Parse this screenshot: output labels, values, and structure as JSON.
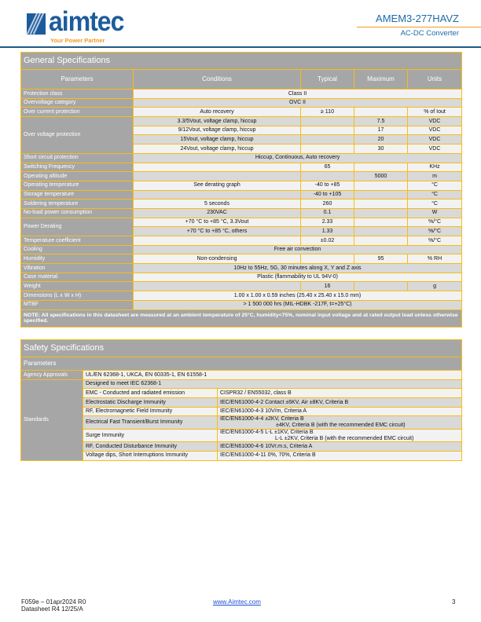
{
  "header": {
    "logo_text": "aimtec",
    "logo_tagline": "Your Power Partner",
    "product": "AMEM3-277HAVZ",
    "subtitle": "AC-DC Converter"
  },
  "general": {
    "title": "General Specifications",
    "columns": [
      "Parameters",
      "Conditions",
      "Typical",
      "Maximum",
      "Units"
    ],
    "rows": [
      {
        "p": "Protection class",
        "span": "Class II"
      },
      {
        "p": "Overvoltage category",
        "span": "OVC II"
      },
      {
        "p": "Over current protection",
        "c": "Auto recovery",
        "t": "≥ 110",
        "m": "",
        "u": "% of Iout"
      },
      {
        "p": "Over voltage protection",
        "c": "3.3/5Vout, voltage clamp, hiccup",
        "t": "",
        "m": "7.5",
        "u": "VDC",
        "rs": 4
      },
      {
        "c": "9/12Vout, voltage clamp, hiccup",
        "t": "",
        "m": "17",
        "u": "VDC"
      },
      {
        "c": "15Vout, voltage clamp, hiccup",
        "t": "",
        "m": "20",
        "u": "VDC"
      },
      {
        "c": "24Vout, voltage clamp, hiccup",
        "t": "",
        "m": "30",
        "u": "VDC"
      },
      {
        "p": "Short circuit protection",
        "span": "Hiccup, Continuous, Auto recovery"
      },
      {
        "p": "Switching Frequency",
        "c": "",
        "t": "65",
        "m": "",
        "u": "KHz"
      },
      {
        "p": "Operating altitude",
        "c": "",
        "t": "",
        "m": "5000",
        "u": "m"
      },
      {
        "p": "Operating temperature",
        "c": "See derating graph",
        "t": "-40 to +85",
        "m": "",
        "u": "°C"
      },
      {
        "p": "Storage temperature",
        "c": "",
        "t": "-40 to +105",
        "m": "",
        "u": "°C"
      },
      {
        "p": "Soldering temperature",
        "c": "5 seconds",
        "t": "260",
        "m": "",
        "u": "°C"
      },
      {
        "p": "No-load power consumption",
        "c": "230VAC",
        "t": "0.1",
        "m": "",
        "u": "W"
      },
      {
        "p": "Power Derating",
        "c": "+70 °C to +85 °C, 3.3Vout",
        "t": "2.33",
        "m": "",
        "u": "%/°C",
        "rs": 2
      },
      {
        "c": "+70 °C to +85 °C, others",
        "t": "1.33",
        "m": "",
        "u": "%/°C"
      },
      {
        "p": "Temperature coefficient",
        "c": "",
        "t": "±0.02",
        "m": "",
        "u": "%/°C"
      },
      {
        "p": "Cooling",
        "span": "Free air convection"
      },
      {
        "p": "Humidity",
        "c": "Non-condensing",
        "t": "",
        "m": "95",
        "u": "% RH"
      },
      {
        "p": "Vibration",
        "span": "10Hz to 55Hz, 5G, 30 minutes along X, Y and Z axis"
      },
      {
        "p": "Case material",
        "span": "Plastic (flammability to UL 94V-0)"
      },
      {
        "p": "Weight",
        "c": "",
        "t": "16",
        "m": "",
        "u": "g"
      },
      {
        "p": "Dimensions (L x W x H)",
        "span": "1.00 x 1.00 x 0.59 inches (25.40 x 25.40 x 15.0 mm)"
      },
      {
        "p": "MTBF",
        "span": "> 1 500 000 hrs (MIL-HDBK -217F, t=+25°C)"
      }
    ],
    "note": "NOTE: All specifications in this datasheet are measured at an ambient temperature of 25°C, humidity<75%, nominal input voltage and at rated output load unless otherwise specified."
  },
  "safety": {
    "title": "Safety Specifications",
    "param_header": "Parameters",
    "agency_label": "Agency Approvals",
    "agency_value": "UL/EN 62368-1, UKCA, EN 60335-1, EN 61558-1",
    "standards_label": "Standards",
    "designed": "Designed to meet IEC 62368-1",
    "rows": [
      {
        "n": "EMC - Conducted and radiated emission",
        "v": [
          "CISPR32 / EN55032, class B"
        ]
      },
      {
        "n": "Electrostatic Discharge Immunity",
        "v": [
          "IEC/EN61000-4-2 Contact ±6KV, Air ±8KV, Criteria B"
        ]
      },
      {
        "n": "RF, Electromagnetic Field Immunity",
        "v": [
          "IEC/EN61000-4-3 10V/m, Criteria A"
        ]
      },
      {
        "n": "Electrical Fast Transient/Burst Immunity",
        "v": [
          "IEC/EN61000-4-4 ±2KV, Criteria B",
          "±4KV, Criteria B (with the recommended EMC circuit)"
        ]
      },
      {
        "n": "Surge Immunity",
        "v": [
          "IEC/EN61000-4-5 L-L ±1KV, Criteria B",
          "L-L ±2KV, Criteria B (with the recommended EMC circuit)"
        ]
      },
      {
        "n": "RF, Conducted Disturbance Immunity",
        "v": [
          "IEC/EN61000-4-6 10Vr.m.s, Criteria A"
        ]
      },
      {
        "n": "Voltage dips, Short Interruptions Immunity",
        "v": [
          "IEC/EN61000-4-11 0%, 70%, Criteria B"
        ]
      }
    ]
  },
  "footer": {
    "code": "F059e – 01apr2024 R0",
    "datasheet": "Datasheet R4 12/25/A",
    "link": "www.Aimtec.com",
    "page": "3"
  }
}
